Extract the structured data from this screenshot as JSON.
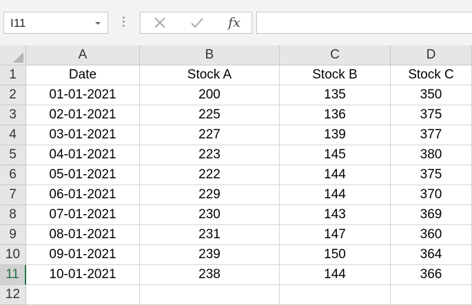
{
  "name_box": {
    "value": "I11"
  },
  "formula_bar": {
    "cancel_icon": "x-icon",
    "enter_icon": "check-icon",
    "fx_label": "fx",
    "value": ""
  },
  "columns": [
    "A",
    "B",
    "C",
    "D"
  ],
  "rows": [
    "1",
    "2",
    "3",
    "4",
    "5",
    "6",
    "7",
    "8",
    "9",
    "10",
    "11",
    "12"
  ],
  "active_row": "11",
  "table": [
    [
      "Date",
      "Stock A",
      "Stock B",
      "Stock C"
    ],
    [
      "01-01-2021",
      "200",
      "135",
      "350"
    ],
    [
      "02-01-2021",
      "225",
      "136",
      "375"
    ],
    [
      "03-01-2021",
      "227",
      "139",
      "377"
    ],
    [
      "04-01-2021",
      "223",
      "145",
      "380"
    ],
    [
      "05-01-2021",
      "222",
      "144",
      "375"
    ],
    [
      "06-01-2021",
      "229",
      "144",
      "370"
    ],
    [
      "07-01-2021",
      "230",
      "143",
      "369"
    ],
    [
      "08-01-2021",
      "231",
      "147",
      "360"
    ],
    [
      "09-01-2021",
      "239",
      "150",
      "364"
    ],
    [
      "10-01-2021",
      "238",
      "144",
      "366"
    ]
  ],
  "colors": {
    "accent": "#217346",
    "header_bg": "#e6e6e6",
    "gridline": "#d4d4d4"
  }
}
